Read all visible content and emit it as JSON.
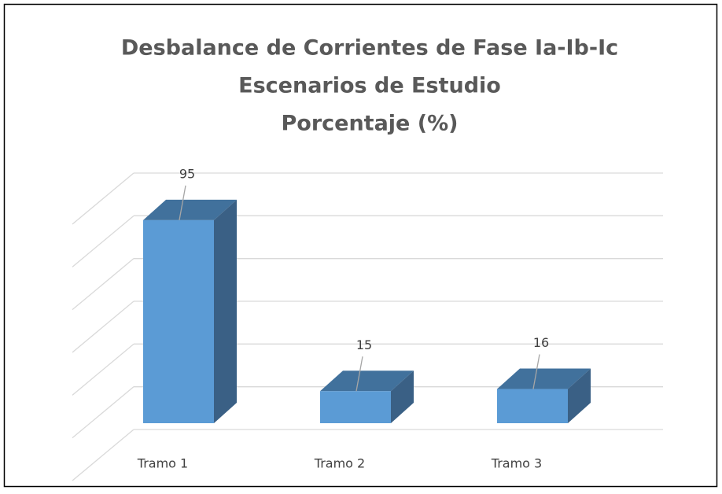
{
  "chart_data": {
    "type": "bar3d",
    "title": [
      "Desbalance de Corrientes de Fase Ia-Ib-Ic",
      "Escenarios de Estudio",
      "Porcentaje (%)"
    ],
    "categories": [
      "Tramo 1",
      "Tramo 2",
      "Tramo 3"
    ],
    "values": [
      95,
      15,
      16
    ],
    "color": "#5b9bd5",
    "ylim": [
      0,
      120
    ],
    "yticks": [
      0,
      20,
      40,
      60,
      80,
      100,
      120
    ],
    "grid": true
  }
}
